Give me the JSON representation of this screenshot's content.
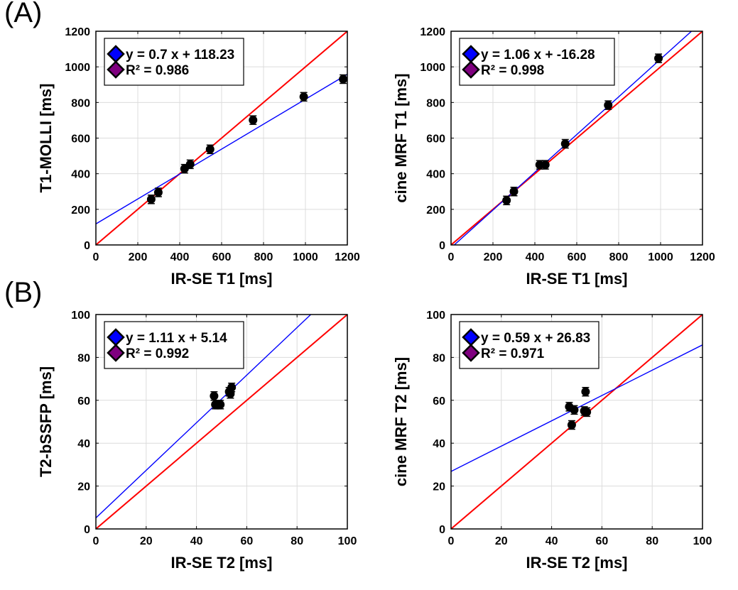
{
  "panel_labels": [
    "(A)",
    "(B)"
  ],
  "colors": {
    "fit_line": "#0000ff",
    "identity_line": "#ff0000",
    "marker": "#000000",
    "legend_fit": "#0000ff",
    "legend_r2": "#7f007f",
    "grid": "#dcdcdc"
  },
  "chart_data": [
    {
      "type": "scatter",
      "panel": "(A)",
      "xlabel": "IR-SE T1 [ms]",
      "ylabel": "T1-MOLLI [ms]",
      "xlim": [
        0,
        1200
      ],
      "ylim": [
        0,
        1200
      ],
      "xticks": [
        0,
        200,
        400,
        600,
        800,
        1000,
        1200
      ],
      "yticks": [
        0,
        200,
        400,
        600,
        800,
        1000,
        1200
      ],
      "grid": true,
      "legend_position": "top-left",
      "legend": [
        "y = 0.7 x + 118.23",
        "R² = 0.986"
      ],
      "fit": {
        "slope": 0.7,
        "intercept": 118.23
      },
      "identity": true,
      "points": [
        {
          "x": 264,
          "y": 256
        },
        {
          "x": 298,
          "y": 295
        },
        {
          "x": 423,
          "y": 428
        },
        {
          "x": 450,
          "y": 453
        },
        {
          "x": 545,
          "y": 537
        },
        {
          "x": 750,
          "y": 701
        },
        {
          "x": 992,
          "y": 832
        },
        {
          "x": 1180,
          "y": 931
        }
      ]
    },
    {
      "type": "scatter",
      "panel": "(A)",
      "xlabel": "IR-SE T1 [ms]",
      "ylabel": "cine MRF T1 [ms]",
      "xlim": [
        0,
        1200
      ],
      "ylim": [
        0,
        1200
      ],
      "xticks": [
        0,
        200,
        400,
        600,
        800,
        1000,
        1200
      ],
      "yticks": [
        0,
        200,
        400,
        600,
        800,
        1000,
        1200
      ],
      "grid": true,
      "legend_position": "top-left",
      "legend": [
        "y = 1.06 x + -16.28",
        "R² = 0.998"
      ],
      "fit": {
        "slope": 1.06,
        "intercept": -16.28
      },
      "identity": true,
      "points": [
        {
          "x": 265,
          "y": 250
        },
        {
          "x": 300,
          "y": 300
        },
        {
          "x": 423,
          "y": 450
        },
        {
          "x": 450,
          "y": 450
        },
        {
          "x": 545,
          "y": 568
        },
        {
          "x": 750,
          "y": 785
        },
        {
          "x": 990,
          "y": 1048
        }
      ]
    },
    {
      "type": "scatter",
      "panel": "(B)",
      "xlabel": "IR-SE T2 [ms]",
      "ylabel": "T2-bSSFP [ms]",
      "xlim": [
        0,
        100
      ],
      "ylim": [
        0,
        100
      ],
      "xticks": [
        0,
        20,
        40,
        60,
        80,
        100
      ],
      "yticks": [
        0,
        20,
        40,
        60,
        80,
        100
      ],
      "grid": true,
      "legend_position": "top-left",
      "legend": [
        "y = 1.11 x + 5.14",
        "R² = 0.992"
      ],
      "fit": {
        "slope": 1.11,
        "intercept": 5.14
      },
      "identity": true,
      "points": [
        {
          "x": 47,
          "y": 62
        },
        {
          "x": 47.5,
          "y": 58
        },
        {
          "x": 48.5,
          "y": 58
        },
        {
          "x": 49.5,
          "y": 58
        },
        {
          "x": 53,
          "y": 64
        },
        {
          "x": 53.5,
          "y": 63
        },
        {
          "x": 54,
          "y": 66
        }
      ]
    },
    {
      "type": "scatter",
      "panel": "(B)",
      "xlabel": "IR-SE T2 [ms]",
      "ylabel": "cine MRF T2 [ms]",
      "xlim": [
        0,
        100
      ],
      "ylim": [
        0,
        100
      ],
      "xticks": [
        0,
        20,
        40,
        60,
        80,
        100
      ],
      "yticks": [
        0,
        20,
        40,
        60,
        80,
        100
      ],
      "grid": true,
      "legend_position": "top-left",
      "legend": [
        "y = 0.59 x + 26.83",
        "R² = 0.971"
      ],
      "fit": {
        "slope": 0.59,
        "intercept": 26.83
      },
      "identity": true,
      "points": [
        {
          "x": 47,
          "y": 57
        },
        {
          "x": 49,
          "y": 55.5
        },
        {
          "x": 48,
          "y": 48.5
        },
        {
          "x": 53,
          "y": 55
        },
        {
          "x": 54,
          "y": 54.5
        },
        {
          "x": 53.5,
          "y": 64
        }
      ]
    }
  ]
}
